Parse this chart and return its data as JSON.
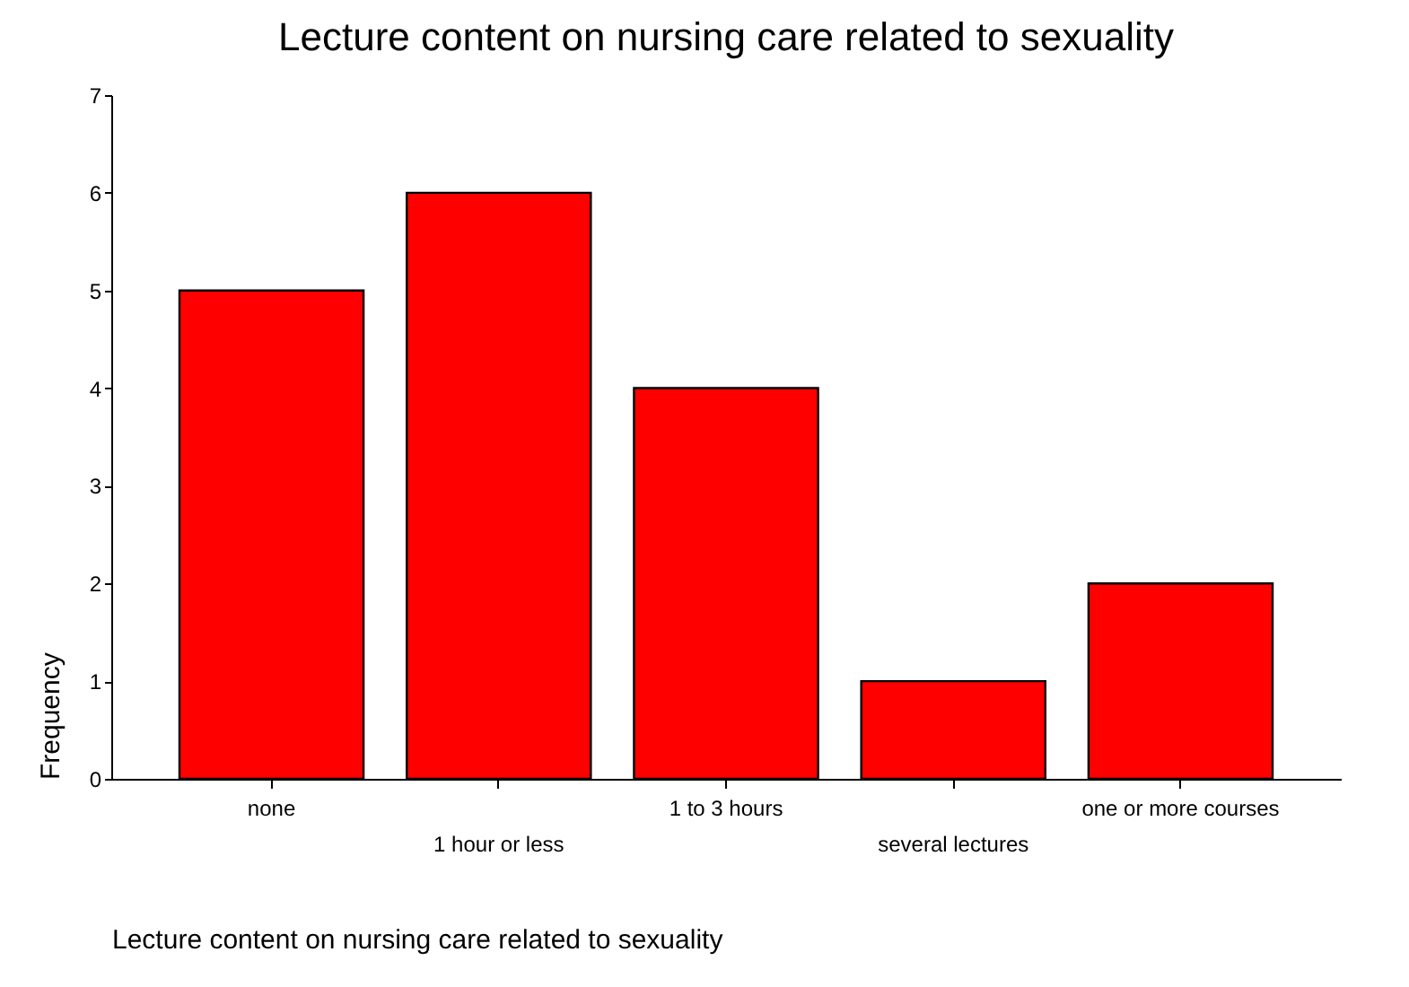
{
  "chart_data": {
    "type": "bar",
    "title": "Lecture content on nursing care related to sexuality",
    "xlabel": "Lecture content on nursing care related to sexuality",
    "ylabel": "Frequency",
    "categories": [
      "none",
      "1 hour or less",
      "1 to 3 hours",
      "several lectures",
      "one or more courses"
    ],
    "values": [
      5,
      6,
      4,
      1,
      2
    ],
    "color": "#ff0000",
    "ylim": [
      0,
      7
    ],
    "yticks": [
      0,
      1,
      2,
      3,
      4,
      5,
      6,
      7
    ],
    "grid": false
  }
}
